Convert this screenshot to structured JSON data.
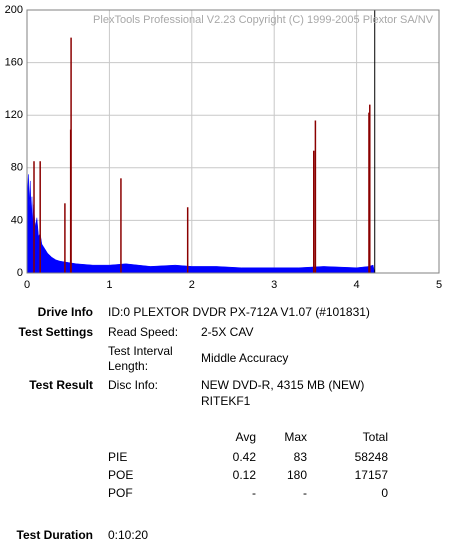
{
  "chart_data": {
    "type": "area",
    "title": "PlexTools Professional V2.23 Copyright (C) 1999-2005 Plextor SA/NV",
    "xlim": [
      0,
      5
    ],
    "xticks": [
      0,
      1,
      2,
      3,
      4,
      5
    ],
    "ylim": [
      0,
      200
    ],
    "yticks": [
      0,
      40,
      80,
      120,
      160,
      200
    ],
    "grid": true,
    "series": [
      {
        "type": "area",
        "color": "#0000ff",
        "x": [
          0,
          0.01,
          0.02,
          0.03,
          0.04,
          0.05,
          0.06,
          0.07,
          0.08,
          0.1,
          0.12,
          0.14,
          0.16,
          0.18,
          0.2,
          0.25,
          0.3,
          0.35,
          0.4,
          0.5,
          0.6,
          0.8,
          1,
          1.2,
          1.5,
          1.8,
          2,
          2.3,
          2.6,
          3,
          3.3,
          3.6,
          4,
          4.15,
          4.2,
          4.22
        ],
        "y": [
          80,
          62,
          75,
          50,
          70,
          45,
          58,
          38,
          52,
          35,
          42,
          28,
          30,
          22,
          20,
          15,
          12,
          10,
          9,
          8,
          7,
          6,
          6,
          7,
          5,
          6,
          5,
          5,
          4,
          4,
          4,
          5,
          4,
          5,
          6,
          0
        ]
      },
      {
        "type": "spike",
        "color": "#8b0000",
        "x": [
          0.085,
          0.16,
          0.46,
          0.53,
          0.535,
          1.14,
          1.95,
          3.48,
          3.5,
          4.15,
          4.16
        ],
        "y": [
          85,
          85,
          53,
          109,
          179,
          72,
          50,
          93,
          116,
          122,
          128
        ]
      },
      {
        "type": "marker",
        "color": "#000000",
        "x": [
          4.22
        ],
        "y": [
          200
        ]
      }
    ]
  },
  "info": {
    "drive_label": "Drive Info",
    "drive_value": "ID:0 PLEXTOR DVDR PX-712A V1.07 (#101831)",
    "settings_label": "Test Settings",
    "read_speed_label": "Read Speed:",
    "read_speed_value": "2-5X CAV",
    "interval_label_1": "Test Interval",
    "interval_label_2": "Length:",
    "interval_value": "Middle Accuracy",
    "result_label": "Test Result",
    "disc_label": "Disc Info:",
    "disc_value_1": "NEW DVD-R, 4315 MB (NEW)",
    "disc_value_2": "RITEKF1",
    "duration_label": "Test Duration",
    "duration_value": "0:10:20"
  },
  "table": {
    "header": [
      "Avg",
      "Max",
      "Total"
    ],
    "rows": [
      [
        "PIE",
        0.42,
        83,
        58248
      ],
      [
        "POE",
        0.12,
        180,
        17157
      ],
      [
        "POF",
        "-",
        "-",
        0
      ]
    ]
  }
}
